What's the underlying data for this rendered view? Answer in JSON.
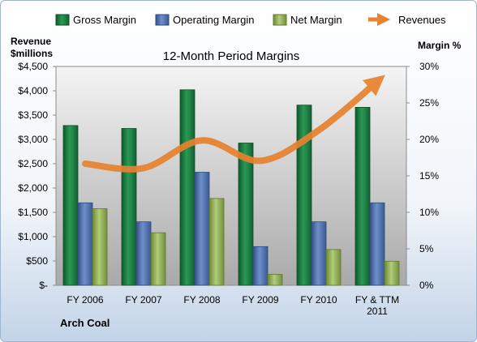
{
  "chart_data": {
    "type": "bar",
    "title": "12-Month Period Margins",
    "company_label": "Arch Coal",
    "left_axis_label_line1": "Revenue",
    "left_axis_label_line2": "$millions",
    "right_axis_label": "Margin %",
    "categories": [
      "FY 2006",
      "FY 2007",
      "FY 2008",
      "FY 2009",
      "FY 2010",
      "FY & TTM 2011"
    ],
    "category_label_lines": [
      [
        "FY 2006"
      ],
      [
        "FY 2007"
      ],
      [
        "FY 2008"
      ],
      [
        "FY 2009"
      ],
      [
        "FY 2010"
      ],
      [
        "FY & TTM",
        "2011"
      ]
    ],
    "left_ticks": [
      "$-",
      "$500",
      "$1,000",
      "$1,500",
      "$2,000",
      "$2,500",
      "$3,000",
      "$3,500",
      "$4,000",
      "$4,500"
    ],
    "right_ticks": [
      "0%",
      "5%",
      "10%",
      "15%",
      "20%",
      "25%",
      "30%"
    ],
    "left_ylim": [
      0,
      4500
    ],
    "right_ylim": [
      0,
      30
    ],
    "legend_placement": "top",
    "series": [
      {
        "name": "Gross Margin",
        "axis": "right",
        "kind": "bar",
        "color": "#1f7a43",
        "values": [
          21.9,
          21.5,
          26.8,
          19.5,
          24.7,
          24.4
        ]
      },
      {
        "name": "Operating Margin",
        "axis": "right",
        "kind": "bar",
        "color": "#4f72b0",
        "values": [
          11.3,
          8.7,
          15.5,
          5.3,
          8.7,
          11.3
        ]
      },
      {
        "name": "Net Margin",
        "axis": "right",
        "kind": "bar",
        "color": "#94b25a",
        "values": [
          10.5,
          7.2,
          11.9,
          1.5,
          4.9,
          3.3
        ]
      },
      {
        "name": "Revenues",
        "axis": "left",
        "kind": "line",
        "color": "#e8822f",
        "values": [
          2500,
          2410,
          2980,
          2560,
          3190,
          4190
        ]
      }
    ],
    "grid": false
  }
}
